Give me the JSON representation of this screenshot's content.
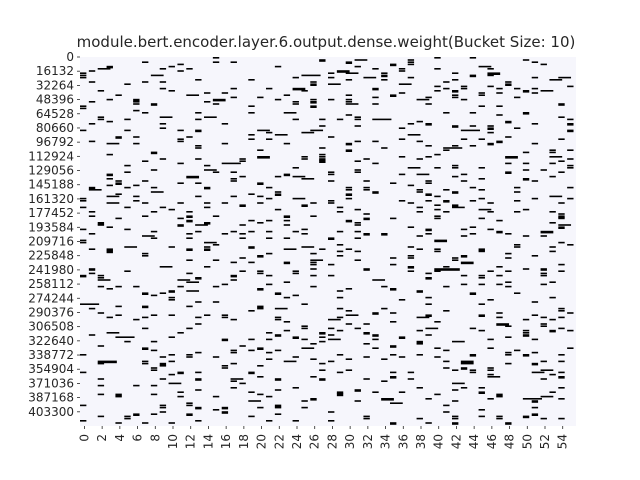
{
  "chart_data": {
    "type": "heatmap",
    "title": "module.bert.encoder.layer.6.output.dense.weight(Bucket Size: 10)",
    "xlabel": "",
    "ylabel": "",
    "x_ticks": [
      "0",
      "2",
      "4",
      "6",
      "8",
      "10",
      "12",
      "14",
      "16",
      "18",
      "20",
      "22",
      "24",
      "26",
      "28",
      "30",
      "32",
      "34",
      "36",
      "38",
      "40",
      "42",
      "44",
      "46",
      "48",
      "50",
      "52",
      "54"
    ],
    "y_ticks": [
      "0",
      "16132",
      "32264",
      "48396",
      "64528",
      "80660",
      "96792",
      "112924",
      "129056",
      "145188",
      "161320",
      "177452",
      "193584",
      "209716",
      "225848",
      "241980",
      "258112",
      "274244",
      "290376",
      "306508",
      "322640",
      "338772",
      "354904",
      "371036",
      "387168",
      "403300"
    ],
    "columns": 56,
    "row_max": 419432,
    "colors": {
      "background": "#f6f6fc",
      "mark": "#000000"
    },
    "legend": "none",
    "grid": false,
    "marks_density": 0.11,
    "note_values": "binary occupancy per bucket; white = empty, black = present"
  }
}
